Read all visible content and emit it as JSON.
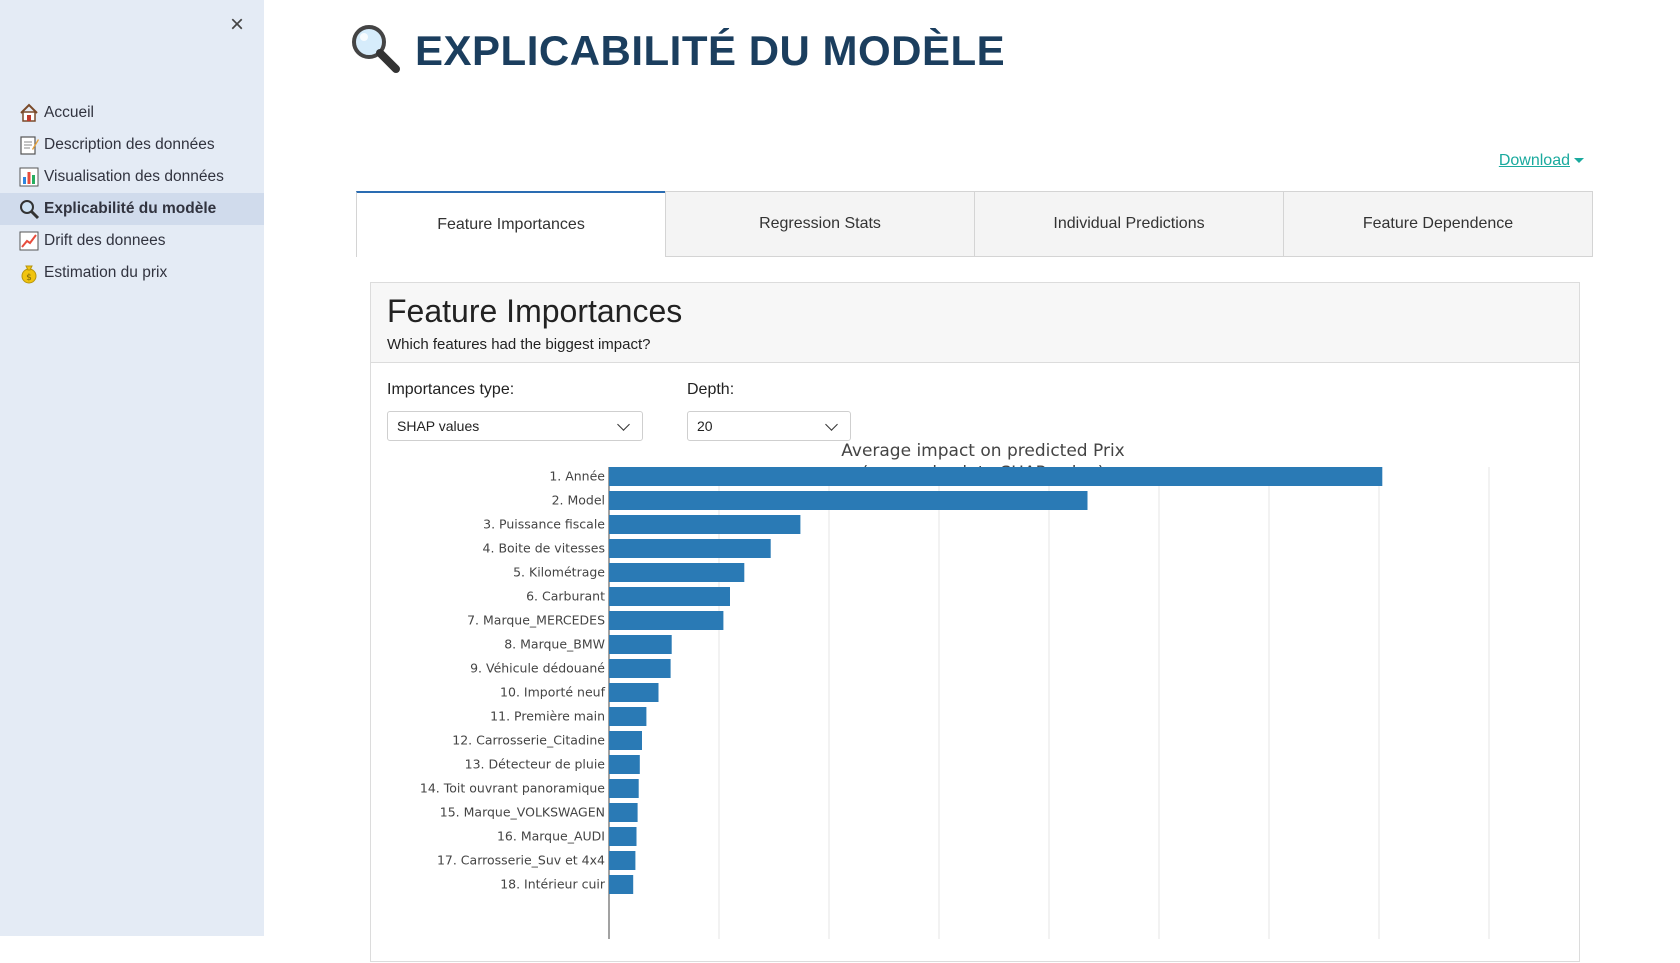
{
  "sidebar": {
    "close_symbol": "×",
    "items": [
      {
        "label": "Accueil",
        "icon": "house-icon",
        "active": false
      },
      {
        "label": "Description des données",
        "icon": "memo-icon",
        "active": false
      },
      {
        "label": "Visualisation des données",
        "icon": "bar-chart-icon",
        "active": false
      },
      {
        "label": "Explicabilité du modèle",
        "icon": "magnifier-icon",
        "active": true
      },
      {
        "label": "Drift des donnees",
        "icon": "trend-chart-icon",
        "active": false
      },
      {
        "label": "Estimation du prix",
        "icon": "money-bag-icon",
        "active": false
      }
    ]
  },
  "page": {
    "title": "EXPLICABILITÉ DU MODÈLE",
    "title_icon": "magnifier-icon"
  },
  "download": {
    "label": "Download"
  },
  "tabs": [
    {
      "label": "Feature Importances",
      "active": true
    },
    {
      "label": "Regression Stats",
      "active": false
    },
    {
      "label": "Individual Predictions",
      "active": false
    },
    {
      "label": "Feature Dependence",
      "active": false
    }
  ],
  "card": {
    "title": "Feature Importances",
    "subtitle": "Which features had the biggest impact?",
    "importances_type": {
      "label": "Importances type:",
      "value": "SHAP values"
    },
    "depth": {
      "label": "Depth:",
      "value": "20"
    }
  },
  "colors": {
    "bar": "#2a7ab5",
    "title": "#1b3e5e",
    "link": "#1aaa9e",
    "sidebar_bg": "#e4ebf5"
  },
  "chart_data": {
    "type": "bar",
    "orientation": "horizontal",
    "title": "Average impact on predicted Prix",
    "subtitle": "(mean absolute SHAP value)",
    "grid": true,
    "categories": [
      "1. Année",
      "2. Model",
      "3. Puissance fiscale",
      "4. Boite de vitesses",
      "5. Kilométrage",
      "6. Carburant",
      "7. Marque_MERCEDES",
      "8. Marque_BMW",
      "9. Véhicule dédouané",
      "10. Importé neuf",
      "11. Première main",
      "12. Carrosserie_Citadine",
      "13. Détecteur de pluie",
      "14. Toit ouvrant panoramique",
      "15. Marque_VOLKSWAGEN",
      "16. Marque_AUDI",
      "17. Carrosserie_Suv et 4x4",
      "18. Intérieur cuir"
    ],
    "values": [
      7.03,
      4.35,
      1.74,
      1.47,
      1.23,
      1.1,
      1.04,
      0.57,
      0.56,
      0.45,
      0.34,
      0.3,
      0.28,
      0.27,
      0.26,
      0.25,
      0.24,
      0.22
    ],
    "xlim": [
      0,
      8
    ]
  }
}
